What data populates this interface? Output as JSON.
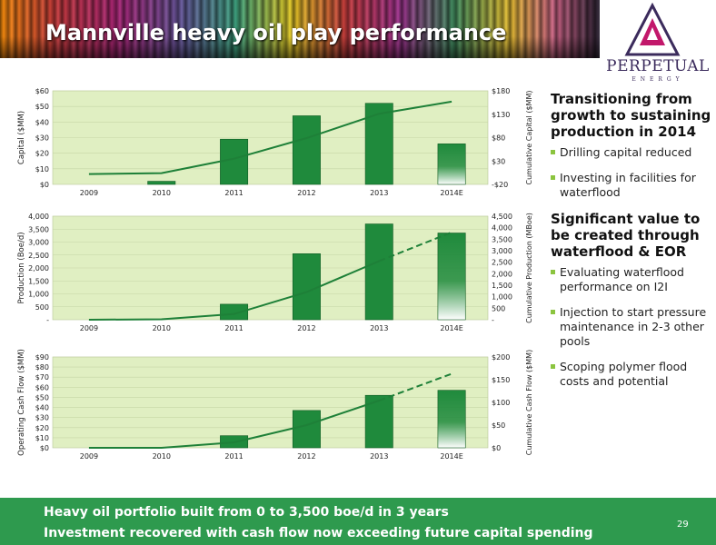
{
  "slide": {
    "title": "Mannville heavy oil play performance",
    "page_number": "29",
    "logo": {
      "name": "PERPETUAL",
      "sub": "ENERGY",
      "icon": "perpetual-logo-icon"
    }
  },
  "sidebar": {
    "sections": [
      {
        "heading": "Transitioning from growth to sustaining production in 2014",
        "bullets": [
          "Drilling capital reduced",
          "Investing in facilities for waterflood"
        ]
      },
      {
        "heading": "Significant value to be created through waterflood & EOR",
        "bullets": [
          "Evaluating waterflood performance on I2I",
          "Injection to start pressure maintenance in 2-3 other pools",
          "Scoping polymer flood costs and potential"
        ]
      }
    ]
  },
  "footer": {
    "line1": "Heavy oil portfolio built from 0 to 3,500 boe/d in 3 years",
    "line2": "Investment recovered with cash flow now exceeding future capital spending"
  },
  "colors": {
    "bar": "#1f8a3c",
    "line": "#1e8038",
    "plot_bg": "#e0efc2",
    "footer": "#2e9a4e",
    "bullet": "#8bc43f"
  },
  "chart_data": [
    {
      "type": "bar",
      "categories": [
        "2009",
        "2010",
        "2011",
        "2012",
        "2013",
        "2014E"
      ],
      "ylabel": "Capital ($MM)",
      "y2label": "Cumulative Capital ($MM)",
      "yticks": [
        "$0",
        "$10",
        "$20",
        "$30",
        "$40",
        "$50",
        "$60"
      ],
      "y2ticks": [
        "-$20",
        "$30",
        "$80",
        "$130",
        "$180"
      ],
      "ylim": [
        0,
        60
      ],
      "y2lim": [
        -20,
        180
      ],
      "series": [
        {
          "type": "bar",
          "values": [
            0,
            2,
            29,
            44,
            52,
            26
          ]
        },
        {
          "type": "line",
          "axis": "right",
          "values": [
            2,
            4,
            35,
            79,
            131,
            157
          ]
        }
      ]
    },
    {
      "type": "bar",
      "categories": [
        "2009",
        "2010",
        "2011",
        "2012",
        "2013",
        "2014E"
      ],
      "ylabel": "Production (Boe/d)",
      "y2label": "Cumulative Production (MBoe)",
      "yticks": [
        "-",
        "500",
        "1,000",
        "1,500",
        "2,000",
        "2,500",
        "3,000",
        "3,500",
        "4,000"
      ],
      "y2ticks": [
        "-",
        "500",
        "1,000",
        "1,500",
        "2,000",
        "2,500",
        "3,000",
        "3,500",
        "4,000",
        "4,500"
      ],
      "ylim": [
        0,
        4000
      ],
      "y2lim": [
        0,
        4500
      ],
      "series": [
        {
          "type": "bar",
          "values": [
            0,
            0,
            600,
            2550,
            3700,
            3350
          ]
        },
        {
          "type": "line",
          "axis": "right",
          "values": [
            0,
            20,
            250,
            1200,
            2550,
            3800
          ],
          "dashed_from": 4
        }
      ]
    },
    {
      "type": "bar",
      "categories": [
        "2009",
        "2010",
        "2011",
        "2012",
        "2013",
        "2014E"
      ],
      "ylabel": "Operating Cash Flow ($MM)",
      "y2label": "Cumulative Cash Flow ($MM)",
      "yticks": [
        "$0",
        "$10",
        "$20",
        "$30",
        "$40",
        "$50",
        "$60",
        "$70",
        "$80",
        "$90"
      ],
      "y2ticks": [
        "$0",
        "$50",
        "$100",
        "$150",
        "$200"
      ],
      "ylim": [
        0,
        90
      ],
      "y2lim": [
        0,
        200
      ],
      "series": [
        {
          "type": "bar",
          "values": [
            0,
            0,
            12,
            37,
            52,
            57
          ]
        },
        {
          "type": "line",
          "axis": "right",
          "values": [
            0,
            0,
            12,
            50,
            104,
            163
          ],
          "dashed_from": 4
        }
      ]
    }
  ]
}
